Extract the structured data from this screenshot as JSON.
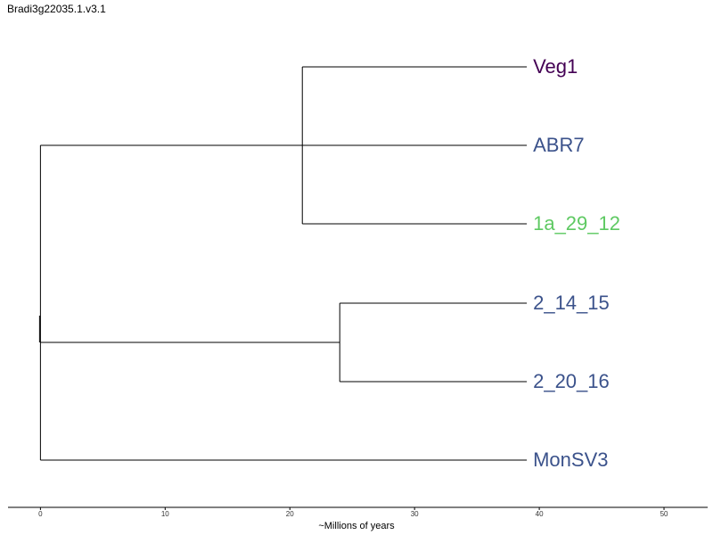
{
  "title": "Bradi3g22035.1.v3.1",
  "tree": {
    "tips": [
      {
        "name": "Veg1",
        "color": "#440154"
      },
      {
        "name": "ABR7",
        "color": "#3b528b"
      },
      {
        "name": "1a_29_12",
        "color": "#5ec962"
      },
      {
        "name": "2_14_15",
        "color": "#3b528b"
      },
      {
        "name": "2_20_16",
        "color": "#3b528b"
      },
      {
        "name": "MonSV3",
        "color": "#3b528b"
      }
    ],
    "tip_depth": 39,
    "nodes": [
      {
        "id": "clade_veg1_1a",
        "depth": 21,
        "children": [
          "Veg1",
          "1a_29_12"
        ]
      },
      {
        "id": "clade_2_14_2_20",
        "depth": 24,
        "children": [
          "2_14_15",
          "2_20_16"
        ]
      }
    ]
  },
  "axis": {
    "label": "~Millions of years",
    "ticks": [
      0,
      10,
      20,
      30,
      40,
      50
    ],
    "range": [
      -2.6,
      53.5
    ]
  }
}
